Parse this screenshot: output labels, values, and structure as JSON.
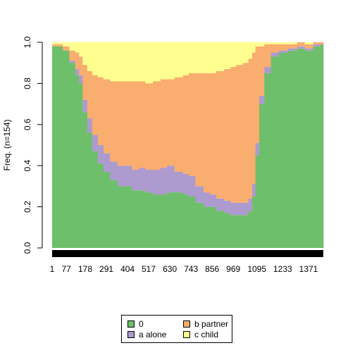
{
  "chart_data": {
    "type": "area",
    "stacked": true,
    "xlabel": "",
    "ylabel": "Freq. (n=154)",
    "ylim": [
      0,
      1
    ],
    "yticks": [
      "0.0",
      "0.2",
      "0.4",
      "0.6",
      "0.8",
      "1.0"
    ],
    "xlim": [
      1,
      1450
    ],
    "xtick_labels": [
      "1",
      "77",
      "178",
      "291",
      "404",
      "517",
      "630",
      "743",
      "856",
      "969",
      "1095",
      "1233",
      "1371"
    ],
    "x": [
      1,
      40,
      77,
      110,
      140,
      150,
      178,
      200,
      230,
      260,
      291,
      330,
      370,
      404,
      450,
      480,
      517,
      560,
      600,
      630,
      680,
      720,
      743,
      790,
      830,
      856,
      900,
      940,
      969,
      1000,
      1040,
      1060,
      1080,
      1095,
      1120,
      1150,
      1190,
      1233,
      1290,
      1330,
      1371,
      1420,
      1450
    ],
    "series": [
      {
        "name": "0",
        "color": "#6ebf6b",
        "values": [
          0.98,
          0.98,
          0.96,
          0.9,
          0.84,
          0.8,
          0.66,
          0.56,
          0.47,
          0.41,
          0.37,
          0.33,
          0.3,
          0.3,
          0.28,
          0.28,
          0.27,
          0.26,
          0.26,
          0.27,
          0.27,
          0.26,
          0.25,
          0.22,
          0.2,
          0.2,
          0.18,
          0.17,
          0.16,
          0.16,
          0.16,
          0.18,
          0.25,
          0.45,
          0.7,
          0.85,
          0.93,
          0.95,
          0.96,
          0.97,
          0.96,
          0.98,
          0.99
        ]
      },
      {
        "name": "a alone",
        "color": "#ad9acf",
        "values": [
          0.0,
          0.0,
          0.0,
          0.01,
          0.03,
          0.04,
          0.06,
          0.07,
          0.08,
          0.09,
          0.09,
          0.09,
          0.1,
          0.1,
          0.1,
          0.11,
          0.11,
          0.12,
          0.13,
          0.13,
          0.1,
          0.1,
          0.1,
          0.08,
          0.07,
          0.06,
          0.06,
          0.06,
          0.06,
          0.06,
          0.06,
          0.06,
          0.06,
          0.06,
          0.04,
          0.03,
          0.02,
          0.01,
          0.01,
          0.01,
          0.01,
          0.01,
          0.0
        ]
      },
      {
        "name": "b partner",
        "color": "#f9ad6e",
        "values": [
          0.01,
          0.01,
          0.02,
          0.05,
          0.08,
          0.09,
          0.17,
          0.23,
          0.29,
          0.33,
          0.36,
          0.39,
          0.41,
          0.41,
          0.43,
          0.42,
          0.42,
          0.43,
          0.43,
          0.42,
          0.46,
          0.48,
          0.5,
          0.55,
          0.58,
          0.59,
          0.62,
          0.64,
          0.66,
          0.67,
          0.68,
          0.68,
          0.64,
          0.47,
          0.24,
          0.11,
          0.04,
          0.03,
          0.02,
          0.02,
          0.02,
          0.01,
          0.01
        ]
      },
      {
        "name": "c child",
        "color": "#ffff8f",
        "values": [
          0.01,
          0.01,
          0.02,
          0.04,
          0.05,
          0.07,
          0.11,
          0.14,
          0.16,
          0.17,
          0.18,
          0.19,
          0.19,
          0.19,
          0.19,
          0.19,
          0.2,
          0.19,
          0.18,
          0.18,
          0.17,
          0.16,
          0.15,
          0.15,
          0.15,
          0.15,
          0.14,
          0.13,
          0.12,
          0.11,
          0.1,
          0.08,
          0.05,
          0.02,
          0.02,
          0.01,
          0.01,
          0.01,
          0.01,
          0.0,
          0.01,
          0.0,
          0.0
        ]
      }
    ],
    "legend": {
      "placement": "bottom",
      "columns": 2
    }
  }
}
